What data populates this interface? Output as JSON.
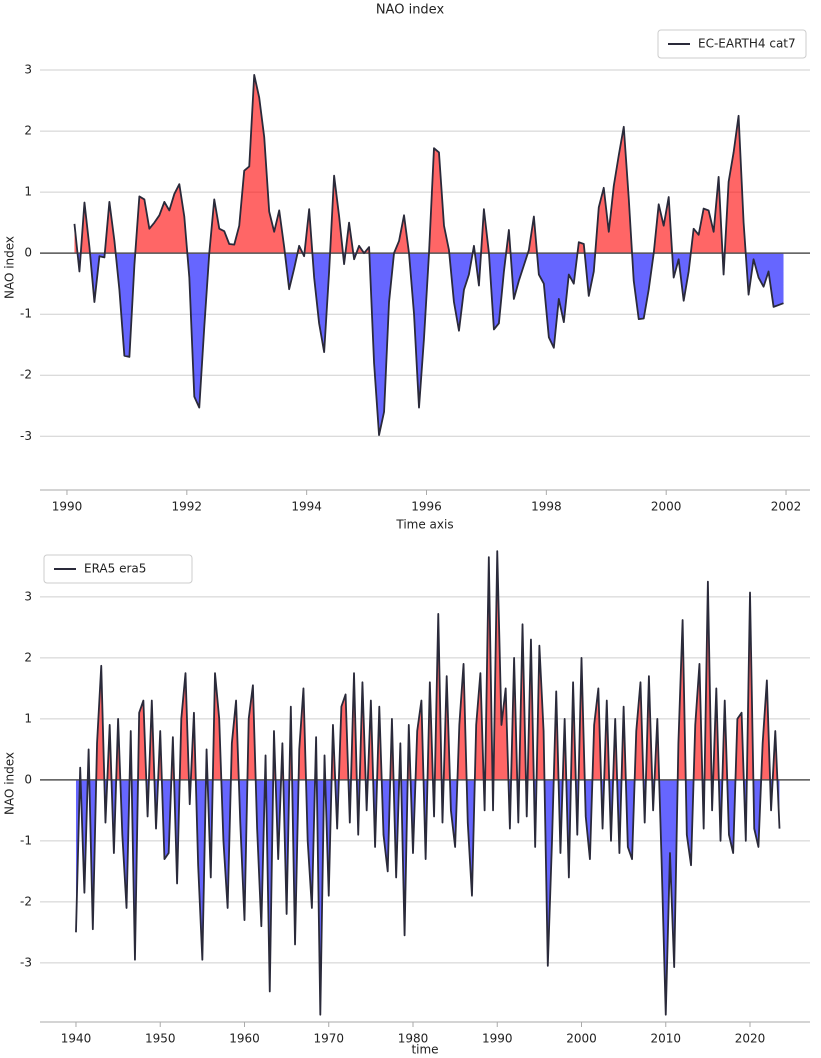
{
  "chart_data": [
    {
      "type": "line",
      "title": "NAO index",
      "xlabel": "Time axis",
      "ylabel": "NAO index",
      "legend": "upper right",
      "grid": true,
      "positive_color": "#ff0000",
      "negative_color": "#0000ff",
      "xlim": [
        1989.55,
        2002.4
      ],
      "xticks": [
        1990,
        1992,
        1994,
        1996,
        1998,
        2000,
        2002
      ],
      "ylim": [
        -3.88,
        3.41
      ],
      "yticks": [
        -3,
        -2,
        -1,
        0,
        1,
        2,
        3
      ],
      "x": [
        1990.125,
        1990.208,
        1990.292,
        1990.375,
        1990.458,
        1990.542,
        1990.625,
        1990.708,
        1990.792,
        1990.875,
        1990.958,
        1991.042,
        1991.125,
        1991.208,
        1991.292,
        1991.375,
        1991.458,
        1991.542,
        1991.625,
        1991.708,
        1991.792,
        1991.875,
        1991.958,
        1992.042,
        1992.125,
        1992.208,
        1992.292,
        1992.375,
        1992.458,
        1992.542,
        1992.625,
        1992.708,
        1992.792,
        1992.875,
        1992.958,
        1993.042,
        1993.125,
        1993.208,
        1993.292,
        1993.375,
        1993.458,
        1993.542,
        1993.625,
        1993.708,
        1993.792,
        1993.875,
        1993.958,
        1994.042,
        1994.125,
        1994.208,
        1994.292,
        1994.375,
        1994.458,
        1994.542,
        1994.625,
        1994.708,
        1994.792,
        1994.875,
        1994.958,
        1995.042,
        1995.125,
        1995.208,
        1995.292,
        1995.375,
        1995.458,
        1995.542,
        1995.625,
        1995.708,
        1995.792,
        1995.875,
        1995.958,
        1996.042,
        1996.125,
        1996.208,
        1996.292,
        1996.375,
        1996.458,
        1996.542,
        1996.625,
        1996.708,
        1996.792,
        1996.875,
        1996.958,
        1997.042,
        1997.125,
        1997.208,
        1997.292,
        1997.375,
        1997.458,
        1997.542,
        1997.625,
        1997.708,
        1997.792,
        1997.875,
        1997.958,
        1998.042,
        1998.125,
        1998.208,
        1998.292,
        1998.375,
        1998.458,
        1998.542,
        1998.625,
        1998.708,
        1998.792,
        1998.875,
        1998.958,
        1999.042,
        1999.125,
        1999.208,
        1999.292,
        1999.375,
        1999.458,
        1999.542,
        1999.625,
        1999.708,
        1999.792,
        1999.875,
        1999.958,
        2000.042,
        2000.125,
        2000.208,
        2000.292,
        2000.375,
        2000.458,
        2000.542,
        2000.625,
        2000.708,
        2000.792,
        2000.875,
        2000.958,
        2001.042,
        2001.125,
        2001.208,
        2001.292,
        2001.375,
        2001.458,
        2001.542,
        2001.625,
        2001.708,
        2001.792,
        2001.875,
        2001.958
      ],
      "series": [
        {
          "name": "EC-EARTH4 cat7",
          "color": "#2a2a3a",
          "values": [
            0.48,
            -0.3,
            0.83,
            0.1,
            -0.8,
            -0.05,
            -0.07,
            0.84,
            0.2,
            -0.6,
            -1.68,
            -1.7,
            -0.2,
            0.93,
            0.88,
            0.4,
            0.5,
            0.62,
            0.84,
            0.7,
            0.97,
            1.13,
            0.6,
            -0.4,
            -2.35,
            -2.53,
            -1.2,
            0.0,
            0.88,
            0.4,
            0.36,
            0.15,
            0.14,
            0.45,
            1.35,
            1.42,
            2.92,
            2.55,
            1.9,
            0.68,
            0.35,
            0.7,
            0.1,
            -0.59,
            -0.25,
            0.12,
            -0.05,
            0.72,
            -0.4,
            -1.15,
            -1.62,
            -0.3,
            1.27,
            0.6,
            -0.18,
            0.5,
            -0.1,
            0.12,
            0.0,
            0.1,
            -1.8,
            -2.98,
            -2.6,
            -0.8,
            0.0,
            0.2,
            0.62,
            0.0,
            -1.0,
            -2.53,
            -1.4,
            0.0,
            1.72,
            1.65,
            0.45,
            0.05,
            -0.8,
            -1.27,
            -0.6,
            -0.35,
            0.12,
            -0.53,
            0.72,
            0.0,
            -1.25,
            -1.15,
            -0.3,
            0.38,
            -0.75,
            -0.45,
            -0.2,
            0.05,
            0.6,
            -0.35,
            -0.5,
            -1.38,
            -1.55,
            -0.75,
            -1.13,
            -0.35,
            -0.5,
            0.18,
            0.15,
            -0.7,
            -0.3,
            0.75,
            1.07,
            0.35,
            1.1,
            1.6,
            2.07,
            0.9,
            -0.45,
            -1.08,
            -1.07,
            -0.6,
            0.0,
            0.8,
            0.45,
            0.92,
            -0.4,
            -0.1,
            -0.78,
            -0.3,
            0.4,
            0.3,
            0.73,
            0.7,
            0.35,
            1.25,
            -0.35,
            1.17,
            1.65,
            2.25,
            0.5,
            -0.68,
            -0.1,
            -0.4,
            -0.55,
            -0.3,
            -0.88,
            -0.85,
            -0.82
          ]
        }
      ]
    },
    {
      "type": "line",
      "xlabel": "time",
      "ylabel": "NAO index",
      "legend": "upper left",
      "grid": true,
      "positive_color": "#ff0000",
      "negative_color": "#0000ff",
      "xlim": [
        1935.73,
        2027.12
      ],
      "xticks": [
        1940,
        1950,
        1960,
        1970,
        1980,
        1990,
        2000,
        2010,
        2020
      ],
      "ylim": [
        -3.97,
        3.85
      ],
      "yticks": [
        -3,
        -2,
        -1,
        0,
        1,
        2,
        3
      ],
      "x": [
        1940,
        1940.5,
        1941,
        1941.5,
        1942,
        1942.5,
        1943,
        1943.5,
        1944,
        1944.5,
        1945,
        1945.5,
        1946,
        1946.5,
        1947,
        1947.5,
        1948,
        1948.5,
        1949,
        1949.5,
        1950,
        1950.5,
        1951,
        1951.5,
        1952,
        1952.5,
        1953,
        1953.5,
        1954,
        1954.5,
        1955,
        1955.5,
        1956,
        1956.5,
        1957,
        1957.5,
        1958,
        1958.5,
        1959,
        1959.5,
        1960,
        1960.5,
        1961,
        1961.5,
        1962,
        1962.5,
        1963,
        1963.5,
        1964,
        1964.5,
        1965,
        1965.5,
        1966,
        1966.5,
        1967,
        1967.5,
        1968,
        1968.5,
        1969,
        1969.5,
        1970,
        1970.5,
        1971,
        1971.5,
        1972,
        1972.5,
        1973,
        1973.5,
        1974,
        1974.5,
        1975,
        1975.5,
        1976,
        1976.5,
        1977,
        1977.5,
        1978,
        1978.5,
        1979,
        1979.5,
        1980,
        1980.5,
        1981,
        1981.5,
        1982,
        1982.5,
        1983,
        1983.5,
        1984,
        1984.5,
        1985,
        1985.5,
        1986,
        1986.5,
        1987,
        1987.5,
        1988,
        1988.5,
        1989,
        1989.5,
        1990,
        1990.5,
        1991,
        1991.5,
        1992,
        1992.5,
        1993,
        1993.5,
        1994,
        1994.5,
        1995,
        1995.5,
        1996,
        1996.5,
        1997,
        1997.5,
        1998,
        1998.5,
        1999,
        1999.5,
        2000,
        2000.5,
        2001,
        2001.5,
        2002,
        2002.5,
        2003,
        2003.5,
        2004,
        2004.5,
        2005,
        2005.5,
        2006,
        2006.5,
        2007,
        2007.5,
        2008,
        2008.5,
        2009,
        2009.5,
        2010,
        2010.5,
        2011,
        2011.5,
        2012,
        2012.5,
        2013,
        2013.5,
        2014,
        2014.5,
        2015,
        2015.5,
        2016,
        2016.5,
        2017,
        2017.5,
        2018,
        2018.5,
        2019,
        2019.5,
        2020,
        2020.5,
        2021,
        2021.5,
        2022,
        2022.5,
        2023,
        2023.5
      ],
      "series": [
        {
          "name": "ERA5 era5",
          "color": "#2a2a3a",
          "values": [
            -2.5,
            0.2,
            -1.85,
            0.5,
            -2.45,
            0.6,
            1.87,
            -0.7,
            0.9,
            -1.2,
            1.0,
            -0.9,
            -2.1,
            0.8,
            -2.95,
            1.1,
            1.3,
            -0.6,
            1.3,
            -0.8,
            0.8,
            -1.3,
            -1.2,
            0.7,
            -1.7,
            1.0,
            1.75,
            -0.4,
            1.1,
            -1.4,
            -2.95,
            0.5,
            -1.6,
            1.75,
            1.0,
            -1.0,
            -2.1,
            0.6,
            1.3,
            -0.7,
            -2.3,
            1.0,
            1.55,
            -0.8,
            -2.4,
            0.4,
            -3.47,
            0.8,
            -1.3,
            0.6,
            -2.2,
            1.2,
            -2.7,
            0.5,
            1.5,
            -1.0,
            -2.1,
            0.7,
            -3.85,
            0.4,
            -1.9,
            0.9,
            -0.8,
            1.2,
            1.4,
            -0.7,
            1.75,
            -0.9,
            1.6,
            -0.5,
            1.3,
            -1.1,
            1.2,
            -0.9,
            -1.5,
            1.0,
            -1.6,
            0.6,
            -2.55,
            0.9,
            -1.2,
            0.8,
            1.3,
            -1.3,
            1.6,
            -0.6,
            2.72,
            -0.7,
            1.7,
            -0.5,
            -1.1,
            0.9,
            1.9,
            -0.7,
            -1.9,
            0.9,
            1.75,
            -0.5,
            3.65,
            -0.5,
            3.75,
            0.9,
            1.5,
            -0.8,
            2.0,
            -0.7,
            2.55,
            -0.6,
            2.3,
            -1.1,
            2.2,
            0.8,
            -3.05,
            -1.0,
            1.45,
            -1.2,
            1.0,
            -1.6,
            1.6,
            -0.9,
            2.0,
            -0.6,
            -1.3,
            0.9,
            1.5,
            -0.8,
            1.3,
            -1.0,
            1.0,
            -1.2,
            1.2,
            -1.1,
            -1.3,
            0.8,
            1.6,
            -0.7,
            1.7,
            -0.5,
            1.0,
            -1.3,
            -3.85,
            -1.2,
            -3.07,
            0.6,
            2.62,
            -0.9,
            -1.4,
            0.9,
            1.9,
            -0.8,
            3.25,
            -0.5,
            1.5,
            -1.0,
            1.3,
            -0.9,
            -1.2,
            1.0,
            1.1,
            -1.0,
            3.07,
            -0.8,
            -1.1,
            0.6,
            1.63,
            -0.5,
            0.8,
            -0.8
          ]
        }
      ]
    }
  ]
}
